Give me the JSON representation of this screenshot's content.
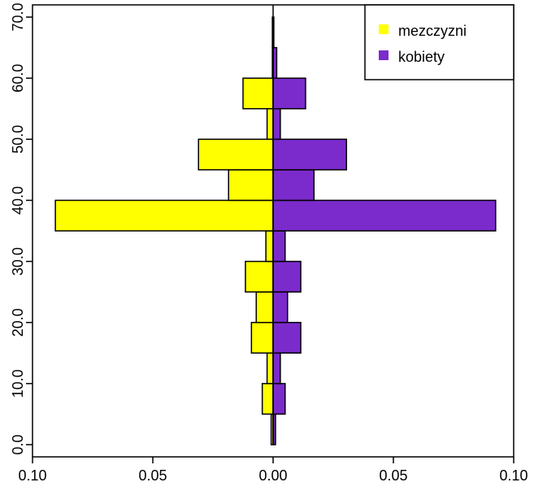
{
  "chart_data": {
    "type": "bar",
    "orientation": "horizontal-pyramid",
    "title": "",
    "xlabel": "",
    "ylabel": "",
    "xlim": [
      -0.1,
      0.1
    ],
    "ylim": [
      -2,
      72
    ],
    "x_ticks": [
      {
        "value": -0.1,
        "label": "0.10"
      },
      {
        "value": -0.05,
        "label": "0.05"
      },
      {
        "value": 0.0,
        "label": "0.00"
      },
      {
        "value": 0.05,
        "label": "0.05"
      },
      {
        "value": 0.1,
        "label": "0.10"
      }
    ],
    "y_ticks": [
      {
        "value": 0,
        "label": "0.0"
      },
      {
        "value": 10,
        "label": "10.0"
      },
      {
        "value": 20,
        "label": "20.0"
      },
      {
        "value": 30,
        "label": "30.0"
      },
      {
        "value": 40,
        "label": "40.0"
      },
      {
        "value": 50,
        "label": "50.0"
      },
      {
        "value": 60,
        "label": "60.0"
      },
      {
        "value": 70,
        "label": "70.0"
      }
    ],
    "bins": [
      {
        "from": 0,
        "to": 5
      },
      {
        "from": 5,
        "to": 10
      },
      {
        "from": 10,
        "to": 15
      },
      {
        "from": 15,
        "to": 20
      },
      {
        "from": 20,
        "to": 25
      },
      {
        "from": 25,
        "to": 30
      },
      {
        "from": 30,
        "to": 35
      },
      {
        "from": 35,
        "to": 40
      },
      {
        "from": 40,
        "to": 45
      },
      {
        "from": 45,
        "to": 50
      },
      {
        "from": 50,
        "to": 55
      },
      {
        "from": 55,
        "to": 60
      },
      {
        "from": 60,
        "to": 65
      },
      {
        "from": 65,
        "to": 70
      }
    ],
    "series": [
      {
        "name": "mezczyzni",
        "side": "left",
        "color": "#ffff00",
        "values": [
          0.0008,
          0.0045,
          0.0025,
          0.009,
          0.007,
          0.0115,
          0.003,
          0.0905,
          0.0185,
          0.031,
          0.0025,
          0.0125,
          0.0003,
          0.0003
        ]
      },
      {
        "name": "kobiety",
        "side": "right",
        "color": "#7b2bcc",
        "values": [
          0.001,
          0.005,
          0.003,
          0.0115,
          0.006,
          0.0115,
          0.005,
          0.0925,
          0.017,
          0.0305,
          0.003,
          0.0135,
          0.0015,
          0.0003
        ]
      }
    ],
    "legend": {
      "position": "top-right"
    },
    "grid": false
  }
}
